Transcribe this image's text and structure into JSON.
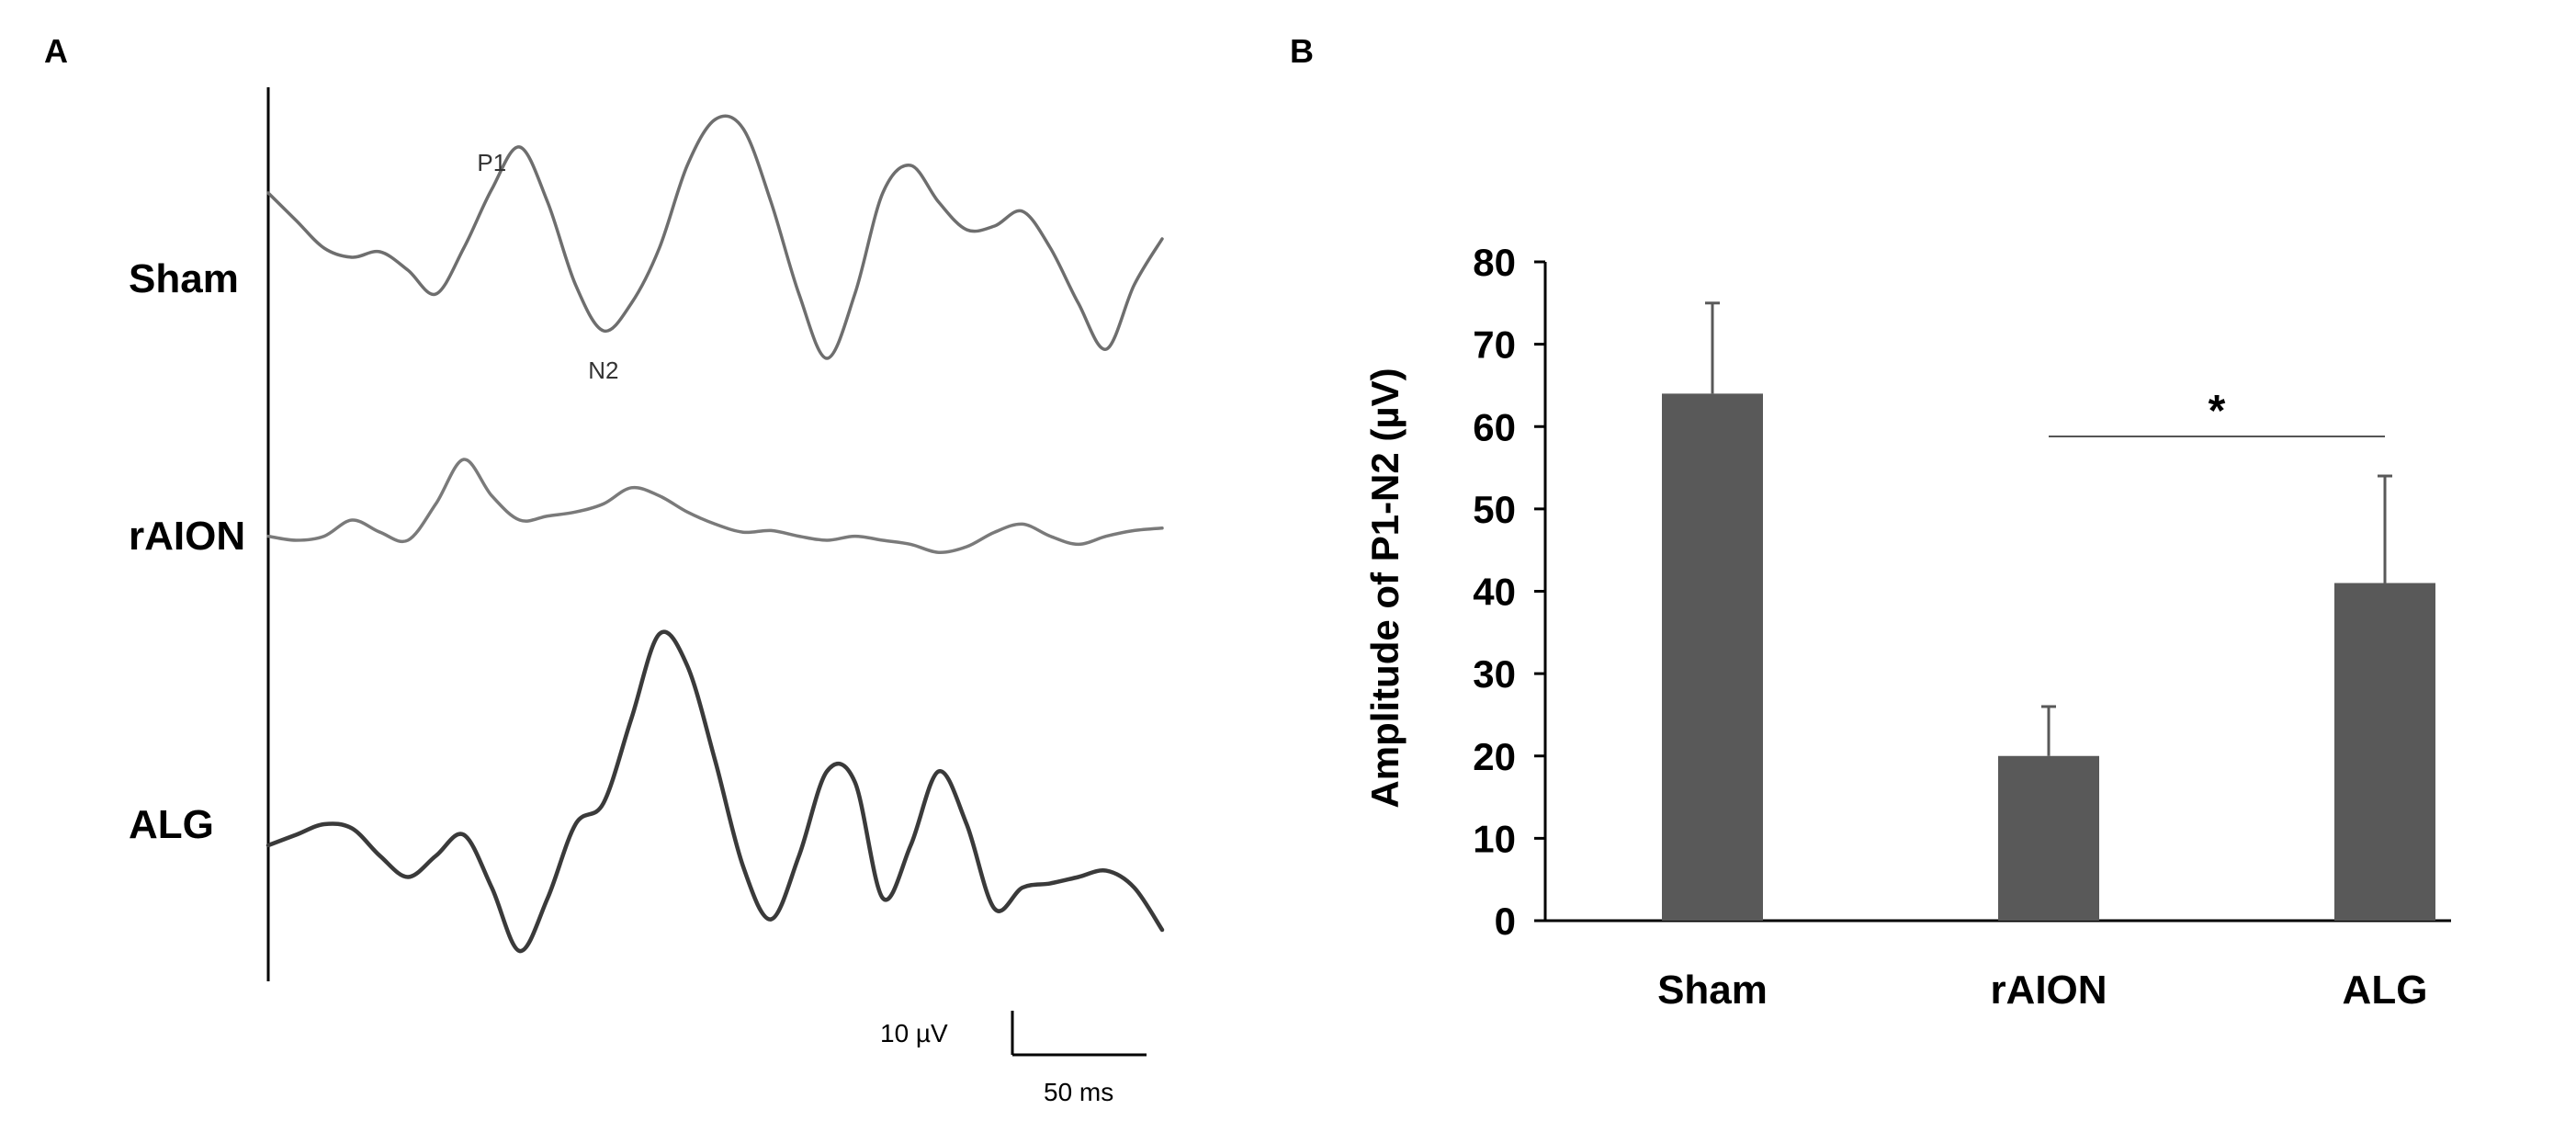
{
  "panel_a": {
    "label": "A",
    "traces": [
      {
        "name": "Sham",
        "color": "#6e6e6e",
        "samples": [
          0.6,
          0.45,
          0.3,
          0.25,
          0.28,
          0.18,
          0.05,
          0.3,
          0.62,
          0.85,
          0.55,
          0.1,
          -0.15,
          0.0,
          0.3,
          0.75,
          1.0,
          0.95,
          0.55,
          0.05,
          -0.3,
          0.05,
          0.6,
          0.75,
          0.55,
          0.4,
          0.42,
          0.5,
          0.3,
          0.0,
          -0.25,
          0.1,
          0.35
        ],
        "peaks": [
          {
            "label": "P1",
            "index": 8,
            "side": "above"
          },
          {
            "label": "N2",
            "index": 12,
            "side": "below"
          }
        ]
      },
      {
        "name": "rAION",
        "color": "#7a7a7a",
        "samples": [
          0.05,
          0.0,
          0.05,
          0.25,
          0.1,
          0.0,
          0.45,
          1.0,
          0.55,
          0.25,
          0.3,
          0.35,
          0.45,
          0.65,
          0.55,
          0.35,
          0.2,
          0.1,
          0.12,
          0.05,
          0.0,
          0.05,
          0.0,
          -0.05,
          -0.15,
          -0.08,
          0.1,
          0.2,
          0.05,
          -0.05,
          0.05,
          0.12,
          0.15
        ],
        "peaks": []
      },
      {
        "name": "ALG",
        "color": "#3a3a3a",
        "samples": [
          0.0,
          0.05,
          0.1,
          0.08,
          -0.05,
          -0.15,
          -0.05,
          0.05,
          -0.2,
          -0.5,
          -0.25,
          0.1,
          0.2,
          0.6,
          1.0,
          0.85,
          0.4,
          -0.1,
          -0.35,
          -0.05,
          0.35,
          0.3,
          -0.25,
          0.0,
          0.35,
          0.1,
          -0.3,
          -0.2,
          -0.18,
          -0.15,
          -0.12,
          -0.2,
          -0.4
        ],
        "peaks": []
      }
    ],
    "scale_bar": {
      "voltage_label": "10 µV",
      "time_label": "50 ms"
    }
  },
  "chart_data": {
    "type": "bar",
    "panel_label": "B",
    "categories": [
      "Sham",
      "rAION",
      "ALG"
    ],
    "values": [
      64,
      20,
      41
    ],
    "error_upper": [
      11,
      6,
      13
    ],
    "bar_color": "#595959",
    "title": "",
    "xlabel": "",
    "ylabel": "Amplitude of P1-N2 (µV)",
    "ylim": [
      0,
      80
    ],
    "yticks": [
      0,
      10,
      20,
      30,
      40,
      50,
      60,
      70,
      80
    ],
    "grid": false,
    "annotations": [
      {
        "type": "significance",
        "from": "rAION",
        "to": "ALG",
        "label": "*"
      }
    ]
  }
}
